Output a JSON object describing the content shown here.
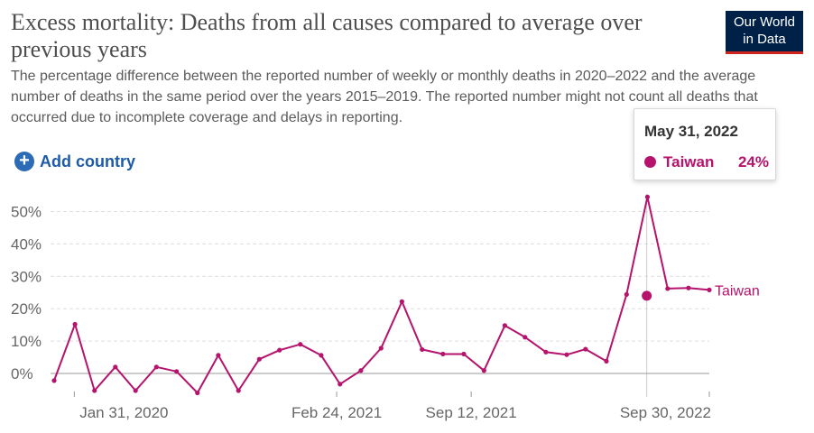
{
  "header": {
    "title": "Excess mortality: Deaths from all causes compared to average over previous years",
    "subtitle": "The percentage difference between the reported number of weekly or monthly deaths in 2020–2022 and the average number of deaths in the same period over the years 2015–2019. The reported number might not count all deaths that occurred due to incomplete coverage and delays in reporting.",
    "logo_line1": "Our World",
    "logo_line2": "in Data"
  },
  "controls": {
    "add_country_label": "Add country"
  },
  "tooltip": {
    "date": "May 31, 2022",
    "country": "Taiwan",
    "value": "24%"
  },
  "colors": {
    "series": "#b5136c",
    "grid": "#dddddd",
    "axis": "#999999",
    "logo_bg": "#002147",
    "logo_stripe": "#ce261e",
    "accent": "#2c6bb5"
  },
  "chart_data": {
    "type": "line",
    "title": "Excess mortality: Deaths from all causes compared to average over previous years",
    "ylim": [
      -5,
      55
    ],
    "yticks": [
      0,
      10,
      20,
      30,
      40,
      50
    ],
    "ytick_labels": [
      "0%",
      "10%",
      "20%",
      "30%",
      "40%",
      "50%"
    ],
    "xtick_labels": [
      "Jan 31, 2020",
      "Feb 24, 2021",
      "Sep 12, 2021",
      "Sep 30, 2022"
    ],
    "xtick_dates": [
      "2020-01-31",
      "2021-02-24",
      "2021-09-12",
      "2022-09-30"
    ],
    "grid": true,
    "series": [
      {
        "name": "Taiwan",
        "color": "#b5136c",
        "x": [
          "2020-01-01",
          "2020-02-01",
          "2020-03-01",
          "2020-04-01",
          "2020-05-01",
          "2020-06-01",
          "2020-07-01",
          "2020-08-01",
          "2020-09-01",
          "2020-10-01",
          "2020-11-01",
          "2020-12-01",
          "2021-01-01",
          "2021-02-01",
          "2021-03-01",
          "2021-04-01",
          "2021-05-01",
          "2021-06-01",
          "2021-07-01",
          "2021-08-01",
          "2021-09-01",
          "2021-10-01",
          "2021-11-01",
          "2021-12-01",
          "2022-01-01",
          "2022-02-01",
          "2022-03-01",
          "2022-04-01",
          "2022-05-01",
          "2022-06-01",
          "2022-07-01",
          "2022-08-01",
          "2022-09-01"
        ],
        "values": [
          -2.2,
          15.2,
          -5.3,
          2.0,
          -5.3,
          2.0,
          0.6,
          -6.0,
          5.6,
          -5.3,
          4.4,
          7.2,
          9.0,
          5.6,
          -3.3,
          0.9,
          7.8,
          22.2,
          7.4,
          6.0,
          6.0,
          0.9,
          14.8,
          11.2,
          6.6,
          5.8,
          7.5,
          3.8,
          24.4,
          54.5,
          26.2,
          26.4,
          25.8
        ]
      }
    ],
    "highlight": {
      "date": "2022-05-31",
      "value": 24
    }
  }
}
